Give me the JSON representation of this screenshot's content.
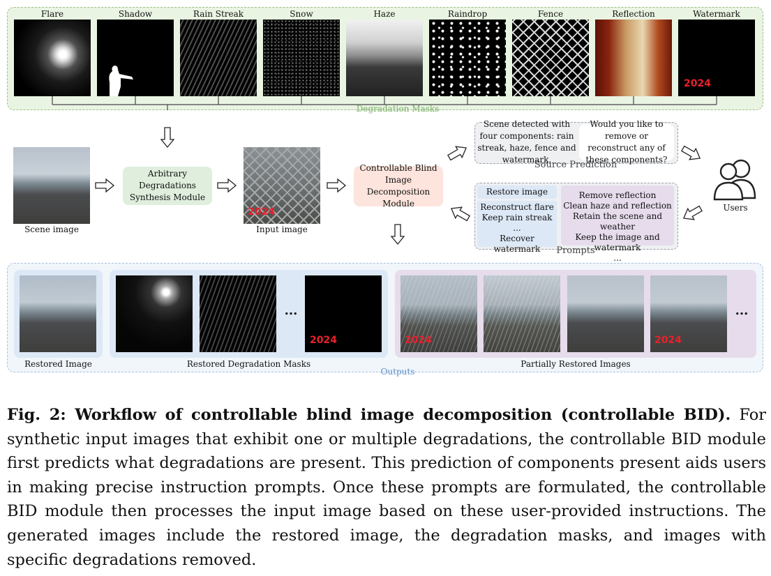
{
  "degradation_masks": {
    "group_label": "Degradation Masks",
    "items": [
      "Flare",
      "Shadow",
      "Rain Streak",
      "Snow",
      "Haze",
      "Raindrop",
      "Fence",
      "Reflection",
      "Watermark"
    ],
    "watermark_text": "2024"
  },
  "pipeline": {
    "scene_label": "Scene image",
    "synth_module": "Arbitrary Degradations Synthesis Module",
    "input_label": "Input image",
    "input_watermark": "2024",
    "bid_module": "Controllable Blind Image Decomposition Module"
  },
  "source_prediction": {
    "label": "Source Prediction",
    "left_text": "Scene detected with four components: rain streak, haze, fence and watermark.",
    "right_text": "Would you like to remove or reconstruct any of these components?"
  },
  "users_label": "Users",
  "prompts": {
    "label": "Prompts",
    "restore": "Restore image",
    "left_lines": [
      "Reconstruct flare",
      "Keep rain streak",
      "...",
      "Recover watermark"
    ],
    "right_lines": [
      "Remove reflection",
      "Clean haze and reflection",
      "Retain the scene and weather",
      "Keep the image and watermark",
      "..."
    ]
  },
  "outputs": {
    "label": "Outputs",
    "restored_image": "Restored Image",
    "restored_masks": "Restored Degradation Masks",
    "partial": "Partially Restored Images",
    "ellipsis": "...",
    "watermark_text": "2024"
  },
  "caption": {
    "bold": "Fig. 2: Workflow of controllable blind image decomposition (controllable BID).",
    "text": " For synthetic input images that exhibit one or multiple degradations, the controllable BID module first predicts what degradations are present. This prediction of components present aids users in making precise instruction prompts. Once these prompts are formulated, the controllable BID module then processes the input image based on these user-provided instructions. The generated images include the restored image, the degradation masks, and images with specific degradations removed."
  },
  "colors": {
    "green_group": "#eaf4e3",
    "green_box": "#dfeedd",
    "pink_box": "#fde4dc",
    "blue_box": "#dde8f6",
    "purple_box": "#e6dcec",
    "watermark_red": "#e8212b"
  }
}
